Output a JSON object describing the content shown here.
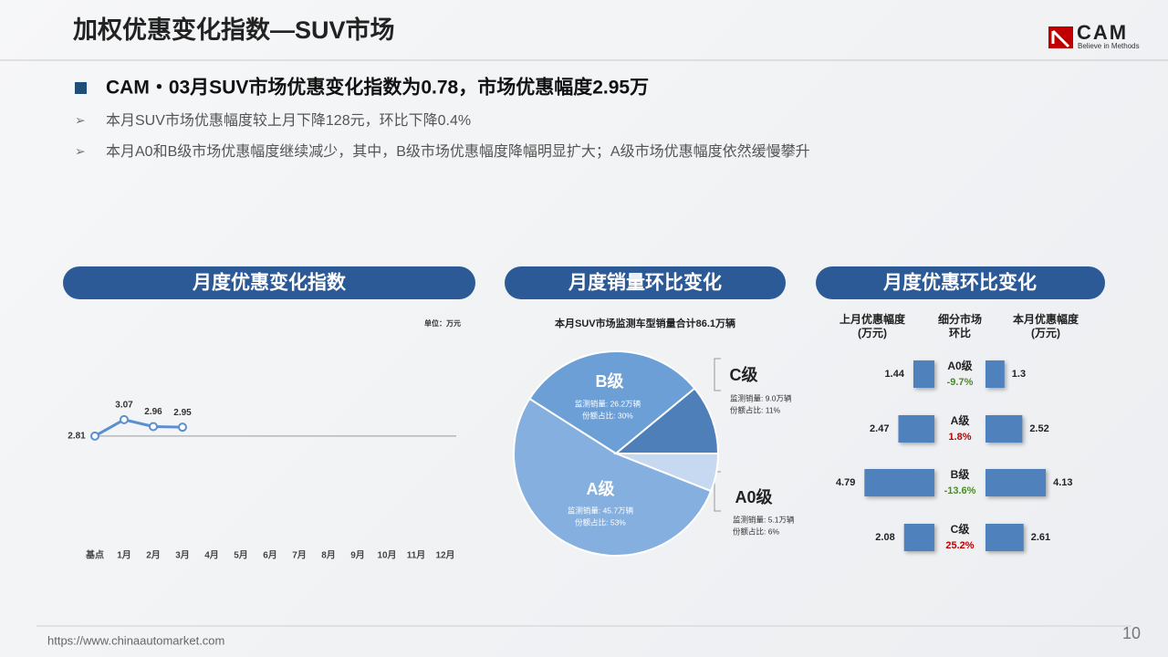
{
  "header": {
    "title": "加权优惠变化指数—SUV市场",
    "logo": "CAM",
    "logo_tagline": "Believe in Methods"
  },
  "summary": {
    "headline": "CAM・03月SUV市场优惠变化指数为0.78，市场优惠幅度2.95万",
    "points": [
      "本月SUV市场优惠幅度较上月下降128元，环比下降0.4%",
      "本月A0和B级市场优惠幅度继续减少，其中，B级市场优惠幅度降幅明显扩大；A级市场优惠幅度依然缓慢攀升"
    ]
  },
  "chart_data": [
    {
      "type": "line",
      "title": "月度优惠变化指数",
      "unit": "单位：万元",
      "categories": [
        "基点",
        "1月",
        "2月",
        "3月",
        "4月",
        "5月",
        "6月",
        "7月",
        "8月",
        "9月",
        "10月",
        "11月",
        "12月"
      ],
      "values": [
        2.81,
        3.07,
        2.96,
        2.95,
        null,
        null,
        null,
        null,
        null,
        null,
        null,
        null,
        null
      ],
      "color": "#5b8fd0",
      "ylim": [
        1,
        4.5
      ]
    },
    {
      "type": "pie",
      "title": "月度销量环比变化",
      "subtitle": "本月SUV市场监测车型销量合计86.1万辆",
      "categories": [
        "A0级",
        "A级",
        "B级",
        "C级"
      ],
      "values": [
        6,
        53,
        30,
        11
      ],
      "value_labels": [
        "份额占比: 6%",
        "份额占比: 53%",
        "份额占比: 30%",
        "份额占比: 11%"
      ],
      "sales_labels": [
        "监测销量: 5.1万辆",
        "监测销量: 45.7万辆",
        "监测销量: 26.2万辆",
        "监测销量: 9.0万辆"
      ],
      "colors": [
        "#c6d9f0",
        "#84afdf",
        "#6c9fd6",
        "#4f7fb8"
      ]
    },
    {
      "type": "butterfly",
      "title": "月度优惠环比变化",
      "categories": [
        "A0级",
        "A级",
        "B级",
        "C级"
      ],
      "series": [
        {
          "name": "上月优惠幅度(万元)",
          "color": "#4f81bd",
          "values": [
            1.44,
            2.47,
            4.79,
            2.08
          ]
        },
        {
          "name": "本月优惠幅度(万元)",
          "color": "#4f81bd",
          "values": [
            1.3,
            2.52,
            4.13,
            2.61
          ]
        }
      ],
      "change_name": "细分市场环比",
      "changes": [
        -9.7,
        1.8,
        -13.6,
        25.2
      ],
      "change_labels": [
        "-9.7%",
        "1.8%",
        "-13.6%",
        "25.2%"
      ],
      "up_color": "#c00000",
      "down_color": "#4a8a2a",
      "xlim": [
        0,
        5
      ]
    }
  ],
  "footer": {
    "url": "https://www.chinaautomarket.com",
    "page": "10"
  }
}
